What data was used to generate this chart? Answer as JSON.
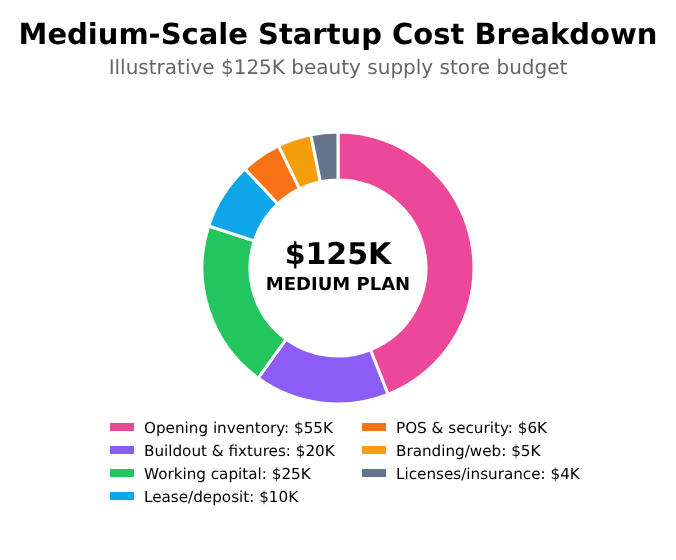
{
  "chart_data": {
    "type": "donut",
    "title": "Medium-Scale Startup Cost Breakdown",
    "subtitle": "Illustrative $125K beauty supply store budget",
    "categories": [
      "Opening inventory: $55K",
      "Buildout & fixtures: $20K",
      "Working capital: $25K",
      "Lease/deposit: $10K",
      "POS & security: $6K",
      "Branding/web: $5K",
      "Licenses/insurance: $4K"
    ],
    "values": [
      55,
      20,
      25,
      10,
      6,
      5,
      4
    ],
    "colors": [
      "#ec4899",
      "#8b5cf6",
      "#22c55e",
      "#0ea5e9",
      "#f97316",
      "#f59e0b",
      "#64748b"
    ],
    "annotations": [
      "$125K",
      "MEDIUM PLAN"
    ],
    "legend": "bottom"
  }
}
